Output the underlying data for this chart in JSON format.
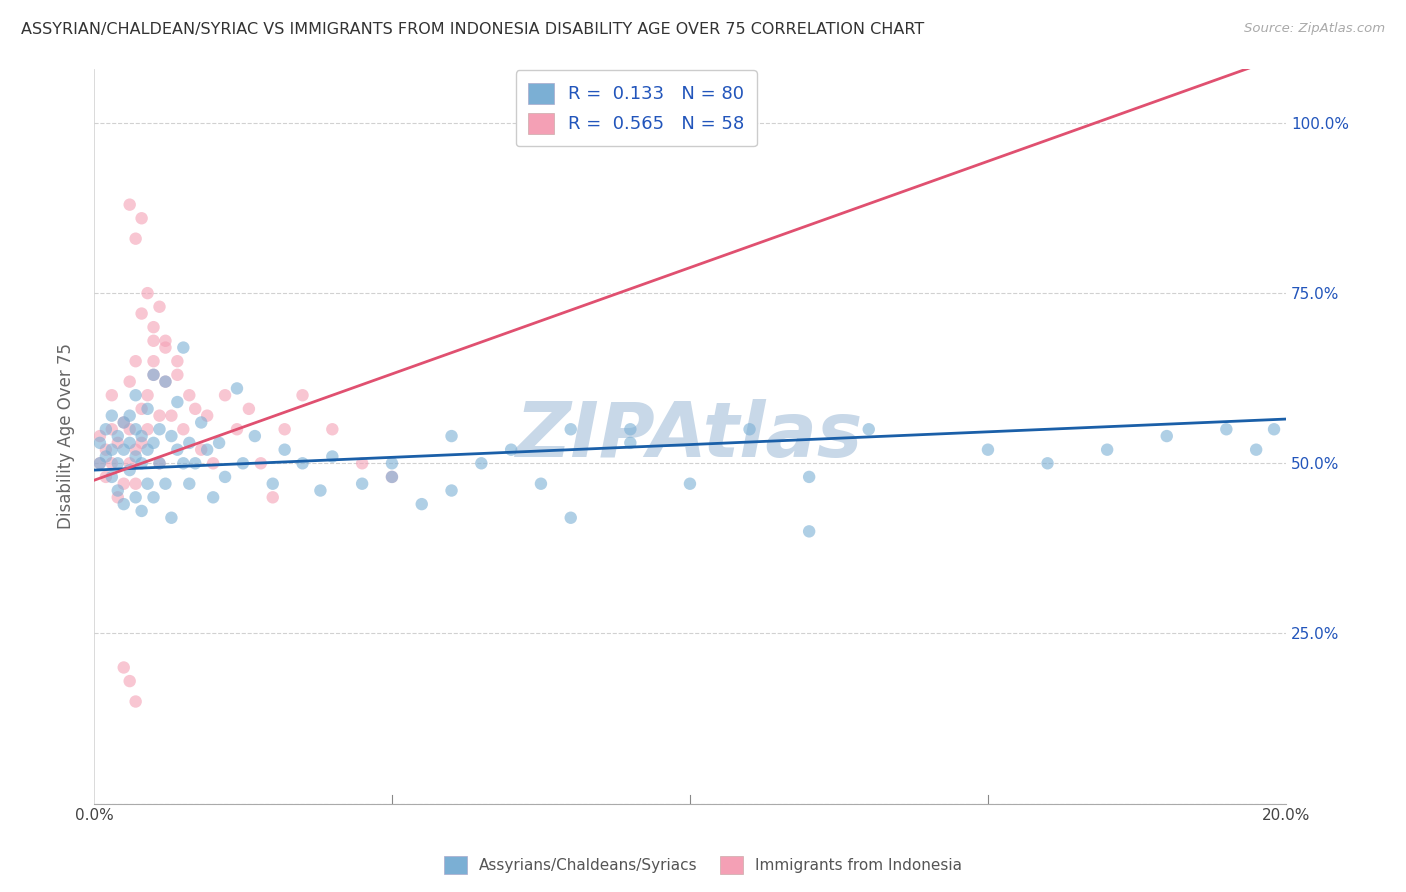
{
  "title": "ASSYRIAN/CHALDEAN/SYRIAC VS IMMIGRANTS FROM INDONESIA DISABILITY AGE OVER 75 CORRELATION CHART",
  "source": "Source: ZipAtlas.com",
  "ylabel": "Disability Age Over 75",
  "xlim": [
    0.0,
    0.2
  ],
  "ylim": [
    0.0,
    1.08
  ],
  "xticks": [
    0.0,
    0.05,
    0.1,
    0.15,
    0.2
  ],
  "xticklabels": [
    "0.0%",
    "",
    "",
    "",
    "20.0%"
  ],
  "yticks": [
    0.0,
    0.25,
    0.5,
    0.75,
    1.0
  ],
  "yticklabels_right": [
    "",
    "25.0%",
    "50.0%",
    "75.0%",
    "100.0%"
  ],
  "legend_blue_label": "Assyrians/Chaldeans/Syriacs",
  "legend_pink_label": "Immigrants from Indonesia",
  "R_blue": 0.133,
  "N_blue": 80,
  "R_pink": 0.565,
  "N_pink": 58,
  "blue_color": "#7bafd4",
  "pink_color": "#f4a0b5",
  "blue_line_color": "#1a5fa8",
  "pink_line_color": "#e05070",
  "watermark": "ZIPAtlas",
  "watermark_color": "#c8d8e8",
  "background_color": "#ffffff",
  "grid_color": "#cccccc",
  "title_color": "#333333",
  "right_axis_color": "#2255bb",
  "scatter_alpha": 0.6,
  "scatter_size": 80,
  "blue_x": [
    0.001,
    0.001,
    0.002,
    0.002,
    0.003,
    0.003,
    0.003,
    0.004,
    0.004,
    0.004,
    0.005,
    0.005,
    0.005,
    0.006,
    0.006,
    0.006,
    0.007,
    0.007,
    0.007,
    0.007,
    0.008,
    0.008,
    0.008,
    0.009,
    0.009,
    0.009,
    0.01,
    0.01,
    0.01,
    0.011,
    0.011,
    0.012,
    0.012,
    0.013,
    0.013,
    0.014,
    0.014,
    0.015,
    0.015,
    0.016,
    0.016,
    0.017,
    0.018,
    0.019,
    0.02,
    0.021,
    0.022,
    0.024,
    0.025,
    0.027,
    0.03,
    0.032,
    0.035,
    0.038,
    0.04,
    0.045,
    0.05,
    0.055,
    0.06,
    0.065,
    0.07,
    0.075,
    0.08,
    0.09,
    0.1,
    0.11,
    0.12,
    0.13,
    0.15,
    0.16,
    0.17,
    0.18,
    0.19,
    0.195,
    0.05,
    0.08,
    0.12,
    0.06,
    0.09,
    0.198
  ],
  "blue_y": [
    0.5,
    0.53,
    0.51,
    0.55,
    0.48,
    0.52,
    0.57,
    0.5,
    0.54,
    0.46,
    0.52,
    0.56,
    0.44,
    0.53,
    0.49,
    0.57,
    0.51,
    0.55,
    0.45,
    0.6,
    0.5,
    0.54,
    0.43,
    0.52,
    0.58,
    0.47,
    0.53,
    0.63,
    0.45,
    0.55,
    0.5,
    0.62,
    0.47,
    0.54,
    0.42,
    0.52,
    0.59,
    0.5,
    0.67,
    0.47,
    0.53,
    0.5,
    0.56,
    0.52,
    0.45,
    0.53,
    0.48,
    0.61,
    0.5,
    0.54,
    0.47,
    0.52,
    0.5,
    0.46,
    0.51,
    0.47,
    0.5,
    0.44,
    0.54,
    0.5,
    0.52,
    0.47,
    0.55,
    0.53,
    0.47,
    0.55,
    0.48,
    0.55,
    0.52,
    0.5,
    0.52,
    0.54,
    0.55,
    0.52,
    0.48,
    0.42,
    0.4,
    0.46,
    0.55,
    0.55
  ],
  "pink_x": [
    0.001,
    0.001,
    0.002,
    0.002,
    0.003,
    0.003,
    0.003,
    0.004,
    0.004,
    0.005,
    0.005,
    0.006,
    0.006,
    0.006,
    0.007,
    0.007,
    0.007,
    0.008,
    0.008,
    0.009,
    0.009,
    0.01,
    0.01,
    0.011,
    0.011,
    0.012,
    0.012,
    0.013,
    0.014,
    0.015,
    0.016,
    0.017,
    0.018,
    0.019,
    0.02,
    0.022,
    0.024,
    0.026,
    0.028,
    0.03,
    0.032,
    0.035,
    0.04,
    0.045,
    0.05,
    0.008,
    0.009,
    0.01,
    0.01,
    0.011,
    0.012,
    0.014,
    0.006,
    0.007,
    0.008,
    0.006,
    0.007,
    0.005
  ],
  "pink_y": [
    0.5,
    0.54,
    0.52,
    0.48,
    0.55,
    0.5,
    0.6,
    0.53,
    0.45,
    0.56,
    0.47,
    0.62,
    0.5,
    0.55,
    0.65,
    0.52,
    0.47,
    0.58,
    0.53,
    0.6,
    0.55,
    0.63,
    0.68,
    0.57,
    0.5,
    0.62,
    0.68,
    0.57,
    0.63,
    0.55,
    0.6,
    0.58,
    0.52,
    0.57,
    0.5,
    0.6,
    0.55,
    0.58,
    0.5,
    0.45,
    0.55,
    0.6,
    0.55,
    0.5,
    0.48,
    0.72,
    0.75,
    0.7,
    0.65,
    0.73,
    0.67,
    0.65,
    0.88,
    0.83,
    0.86,
    0.18,
    0.15,
    0.2
  ],
  "blue_line_x0": 0.0,
  "blue_line_x1": 0.2,
  "blue_line_y0": 0.49,
  "blue_line_y1": 0.565,
  "pink_line_x0": 0.0,
  "pink_line_x1": 0.2,
  "pink_line_y0": 0.475,
  "pink_line_y1": 1.1
}
